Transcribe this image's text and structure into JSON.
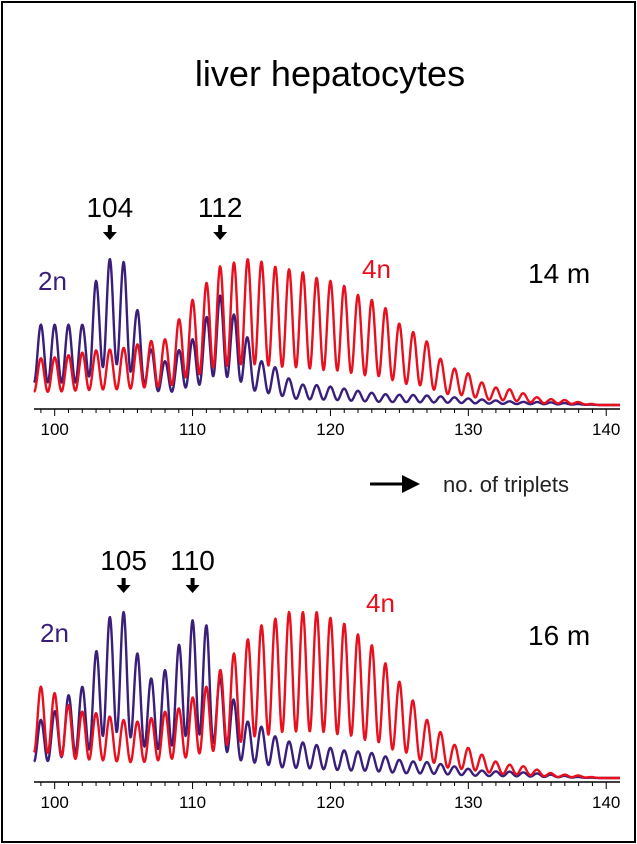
{
  "title": "liver hepatocytes",
  "xlabel": "no. of triplets",
  "colors": {
    "2n": "#3a1f7a",
    "4n": "#e8101e"
  },
  "chart_data": [
    {
      "type": "line",
      "age_label": "14 m",
      "x_ticks": [
        100,
        110,
        120,
        130,
        140
      ],
      "xlim": [
        98.5,
        141
      ],
      "peak_labels": [
        {
          "x": 104,
          "label": "104"
        },
        {
          "x": 112,
          "label": "112"
        }
      ],
      "series": [
        {
          "name": "2n",
          "label": "2n",
          "color": "#3a1f7a",
          "peaks": [
            {
              "x": 102,
              "y": 0.55
            },
            {
              "x": 103,
              "y": 0.85
            },
            {
              "x": 104,
              "y": 1.0
            },
            {
              "x": 105,
              "y": 0.98
            },
            {
              "x": 106,
              "y": 0.65
            },
            {
              "x": 107,
              "y": 0.38
            },
            {
              "x": 108,
              "y": 0.3
            },
            {
              "x": 110,
              "y": 0.45
            },
            {
              "x": 112,
              "y": 0.75
            },
            {
              "x": 113,
              "y": 0.62
            },
            {
              "x": 115,
              "y": 0.3
            },
            {
              "x": 118,
              "y": 0.14
            },
            {
              "x": 125,
              "y": 0.07
            },
            {
              "x": 135,
              "y": 0.02
            },
            {
              "x": 140,
              "y": 0.0
            }
          ]
        },
        {
          "name": "4n",
          "label": "4n",
          "color": "#e8101e",
          "peaks": [
            {
              "x": 99,
              "y": 0.32
            },
            {
              "x": 104,
              "y": 0.38
            },
            {
              "x": 108,
              "y": 0.45
            },
            {
              "x": 110,
              "y": 0.72
            },
            {
              "x": 112,
              "y": 0.95
            },
            {
              "x": 114,
              "y": 1.0
            },
            {
              "x": 117,
              "y": 0.93
            },
            {
              "x": 120,
              "y": 0.85
            },
            {
              "x": 123,
              "y": 0.72
            },
            {
              "x": 126,
              "y": 0.5
            },
            {
              "x": 129,
              "y": 0.25
            },
            {
              "x": 132,
              "y": 0.12
            },
            {
              "x": 136,
              "y": 0.04
            },
            {
              "x": 140,
              "y": 0.0
            }
          ]
        }
      ]
    },
    {
      "type": "line",
      "age_label": "16 m",
      "x_ticks": [
        100,
        110,
        120,
        130,
        140
      ],
      "xlim": [
        98.5,
        141
      ],
      "peak_labels": [
        {
          "x": 105,
          "label": "105"
        },
        {
          "x": 110,
          "label": "110"
        }
      ],
      "series": [
        {
          "name": "2n",
          "label": "2n",
          "color": "#3a1f7a",
          "peaks": [
            {
              "x": 99,
              "y": 0.35
            },
            {
              "x": 102,
              "y": 0.55
            },
            {
              "x": 104,
              "y": 0.97
            },
            {
              "x": 105,
              "y": 1.0
            },
            {
              "x": 106,
              "y": 0.75
            },
            {
              "x": 107,
              "y": 0.6
            },
            {
              "x": 108,
              "y": 0.65
            },
            {
              "x": 110,
              "y": 0.95
            },
            {
              "x": 111,
              "y": 0.92
            },
            {
              "x": 112,
              "y": 0.6
            },
            {
              "x": 114,
              "y": 0.34
            },
            {
              "x": 117,
              "y": 0.22
            },
            {
              "x": 122,
              "y": 0.16
            },
            {
              "x": 126,
              "y": 0.1
            },
            {
              "x": 132,
              "y": 0.04
            },
            {
              "x": 140,
              "y": 0.0
            }
          ]
        },
        {
          "name": "4n",
          "label": "4n",
          "color": "#e8101e",
          "peaks": [
            {
              "x": 99,
              "y": 0.55
            },
            {
              "x": 102,
              "y": 0.4
            },
            {
              "x": 106,
              "y": 0.34
            },
            {
              "x": 109,
              "y": 0.42
            },
            {
              "x": 111,
              "y": 0.55
            },
            {
              "x": 113,
              "y": 0.75
            },
            {
              "x": 115,
              "y": 0.92
            },
            {
              "x": 117,
              "y": 1.0
            },
            {
              "x": 119,
              "y": 1.0
            },
            {
              "x": 121,
              "y": 0.93
            },
            {
              "x": 123,
              "y": 0.8
            },
            {
              "x": 125,
              "y": 0.58
            },
            {
              "x": 127,
              "y": 0.35
            },
            {
              "x": 129,
              "y": 0.2
            },
            {
              "x": 133,
              "y": 0.08
            },
            {
              "x": 137,
              "y": 0.02
            },
            {
              "x": 140,
              "y": 0.0
            }
          ]
        }
      ]
    }
  ]
}
